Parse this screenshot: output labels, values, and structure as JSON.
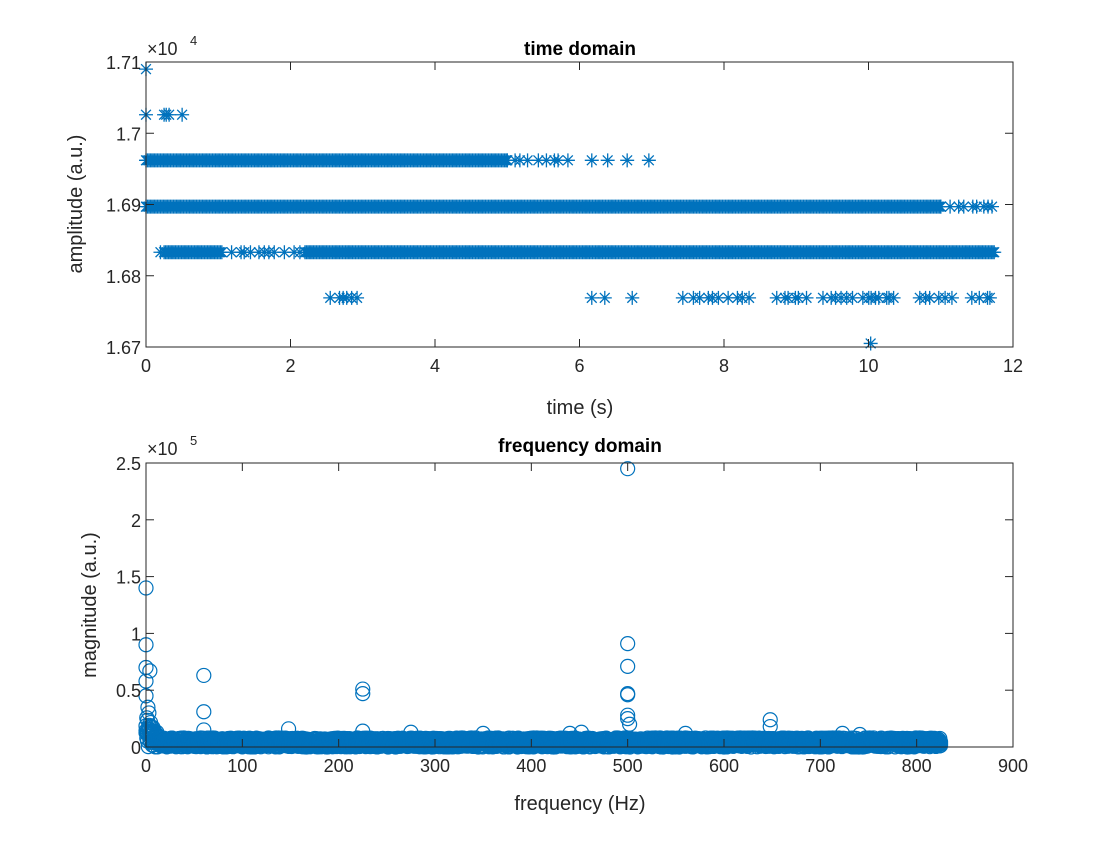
{
  "chart_data": [
    {
      "type": "scatter",
      "marker": "asterisk",
      "title": "time domain",
      "xlabel": "time (s)",
      "ylabel": "amplitude (a.u.)",
      "y_exponent_label": "×10",
      "y_exponent": "4",
      "xlim": [
        0,
        12
      ],
      "ylim": [
        16700,
        17100
      ],
      "xticks": [
        "0",
        "2",
        "4",
        "6",
        "8",
        "10",
        "12"
      ],
      "yticks": [
        "1.67",
        "1.68",
        "1.69",
        "1.7",
        "1.71"
      ],
      "grid": false,
      "color": "#0072BD",
      "levels": [
        {
          "y": 17090,
          "dense": [],
          "sparse": [],
          "points": [
            0.0
          ]
        },
        {
          "y": 17026,
          "dense": [],
          "sparse": [],
          "points": [
            0.0,
            0.25,
            0.28,
            0.32,
            0.5
          ]
        },
        {
          "y": 16962,
          "dense": [
            [
              0.0,
              5.0
            ]
          ],
          "sparse": [
            [
              5.0,
              5.9
            ]
          ],
          "points": [
            6.17,
            6.39,
            6.66,
            6.96
          ]
        },
        {
          "y": 16897,
          "dense": [
            [
              0.0,
              11.0
            ]
          ],
          "sparse": [
            [
              11.0,
              11.75
            ]
          ],
          "points": []
        },
        {
          "y": 16833,
          "dense": [
            [
              2.2,
              11.75
            ],
            [
              0.25,
              1.05
            ]
          ],
          "sparse": [
            [
              1.05,
              2.2
            ]
          ],
          "points": [
            0.2
          ]
        },
        {
          "y": 16769,
          "dense": [],
          "sparse": [
            [
              2.55,
              3.0
            ],
            [
              7.43,
              8.4
            ],
            [
              8.73,
              9.15
            ],
            [
              9.37,
              10.4
            ],
            [
              10.71,
              11.22
            ],
            [
              11.43,
              11.72
            ]
          ],
          "points": [
            6.17,
            6.35,
            6.73
          ]
        },
        {
          "y": 16705,
          "dense": [],
          "sparse": [],
          "points": [
            10.03
          ]
        }
      ]
    },
    {
      "type": "scatter",
      "marker": "circle",
      "title": "frequency domain",
      "xlabel": "frequency (Hz)",
      "ylabel": "magnitude (a.u.)",
      "y_exponent_label": "×10",
      "y_exponent": "5",
      "xlim": [
        0,
        900
      ],
      "ylim": [
        0,
        250000
      ],
      "xticks": [
        "0",
        "100",
        "200",
        "300",
        "400",
        "500",
        "600",
        "700",
        "800",
        "900"
      ],
      "yticks": [
        "0",
        "0.5",
        "1",
        "1.5",
        "2",
        "2.5"
      ],
      "grid": false,
      "color": "#0072BD",
      "noise_floor": {
        "x_range": [
          0,
          825
        ],
        "max_magnitude": 8000
      },
      "peaks": [
        {
          "x": 0,
          "y": 140000
        },
        {
          "x": 0,
          "y": 90000
        },
        {
          "x": 0,
          "y": 70000
        },
        {
          "x": 0,
          "y": 58000
        },
        {
          "x": 4,
          "y": 67000
        },
        {
          "x": 0,
          "y": 45000
        },
        {
          "x": 2,
          "y": 35000
        },
        {
          "x": 3,
          "y": 30000
        },
        {
          "x": 60,
          "y": 63000
        },
        {
          "x": 60,
          "y": 31000
        },
        {
          "x": 60,
          "y": 15000
        },
        {
          "x": 148,
          "y": 16000
        },
        {
          "x": 225,
          "y": 51000
        },
        {
          "x": 225,
          "y": 47000
        },
        {
          "x": 225,
          "y": 14000
        },
        {
          "x": 275,
          "y": 13000
        },
        {
          "x": 350,
          "y": 12000
        },
        {
          "x": 440,
          "y": 12000
        },
        {
          "x": 452,
          "y": 13000
        },
        {
          "x": 500,
          "y": 245000
        },
        {
          "x": 500,
          "y": 91000
        },
        {
          "x": 500,
          "y": 71000
        },
        {
          "x": 500,
          "y": 47000
        },
        {
          "x": 500,
          "y": 46000
        },
        {
          "x": 500,
          "y": 28000
        },
        {
          "x": 500,
          "y": 25000
        },
        {
          "x": 502,
          "y": 20000
        },
        {
          "x": 560,
          "y": 12000
        },
        {
          "x": 648,
          "y": 24000
        },
        {
          "x": 648,
          "y": 18000
        },
        {
          "x": 723,
          "y": 12000
        },
        {
          "x": 741,
          "y": 11000
        }
      ]
    }
  ]
}
